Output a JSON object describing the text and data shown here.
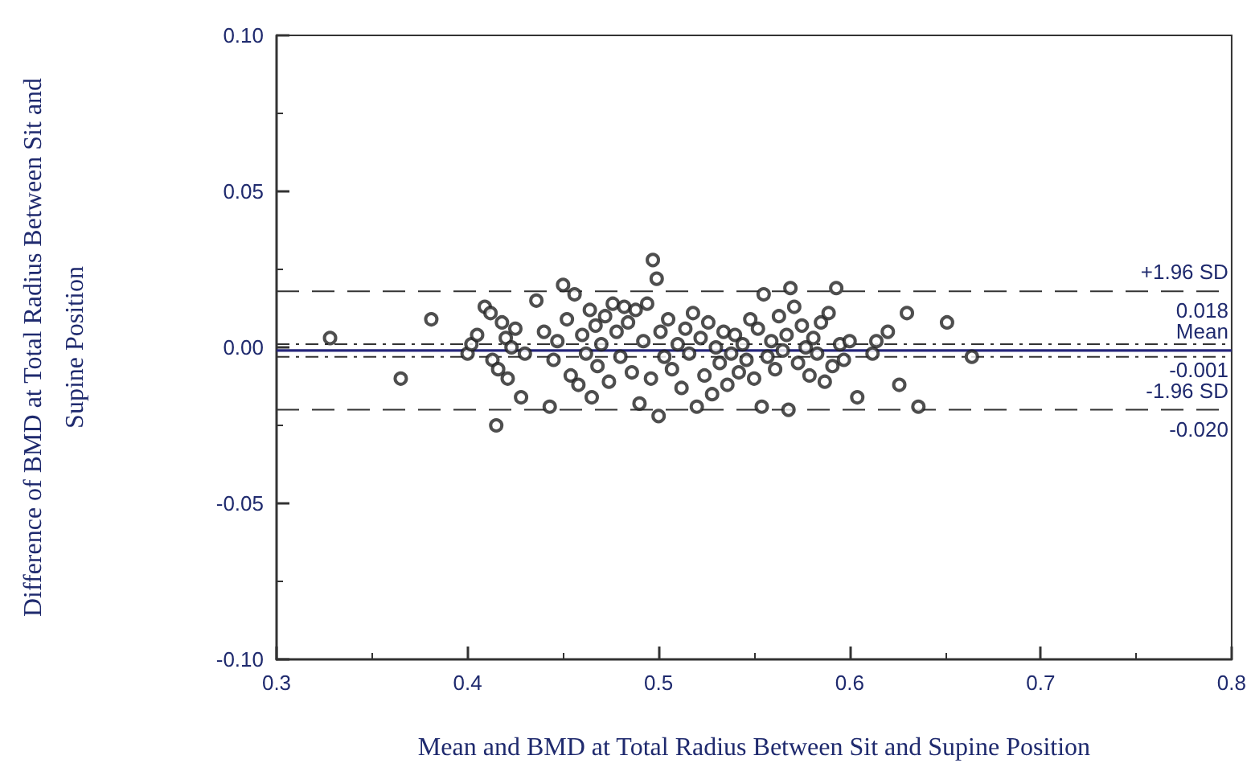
{
  "chart_data": {
    "type": "scatter",
    "xlabel": "Mean and BMD at Total Radius Between Sit and Supine Position",
    "ylabel": "Difference of BMD at Total Radius Between Sit and Supine Position",
    "xlim": [
      0.3,
      0.8
    ],
    "xticks": [
      0.3,
      0.4,
      0.5,
      0.6,
      0.7,
      0.8
    ],
    "ylim": [
      -0.1,
      0.1
    ],
    "yticks": [
      {
        "value": -0.1,
        "label": "-0.10"
      },
      {
        "value": -0.05,
        "label": "-0.05"
      },
      {
        "value": 0,
        "label": "0.00"
      },
      {
        "value": 0.05,
        "label": "0.05"
      },
      {
        "value": 0.1,
        "label": "0.10"
      }
    ],
    "grid": false,
    "marker": "circle",
    "ref_lines": [
      {
        "axis": "y",
        "value": 0.018,
        "label": "+1.96 SD\n0.018",
        "color": "#333333",
        "line_style": "dashed"
      },
      {
        "axis": "y",
        "value": -0.001,
        "label": "Mean\n-0.001",
        "color": "#25257a",
        "line_style": "solid"
      },
      {
        "axis": "y",
        "value": -0.02,
        "label": "-1.96 SD\n-0.020",
        "color": "#333333",
        "line_style": "dashed"
      },
      {
        "axis": "y",
        "value": 0.001,
        "color": "#333333",
        "line_style": "dotted"
      },
      {
        "axis": "y",
        "value": -0.003,
        "color": "#333333",
        "line_style": "dotted"
      }
    ],
    "series": [
      {
        "color": "#222222",
        "x": [
          0.328,
          0.365,
          0.381,
          0.4,
          0.402,
          0.405,
          0.409,
          0.412,
          0.413,
          0.415,
          0.416,
          0.418,
          0.42,
          0.421,
          0.423,
          0.425,
          0.428,
          0.43,
          0.436,
          0.44,
          0.443,
          0.445,
          0.447,
          0.45,
          0.452,
          0.454,
          0.456,
          0.458,
          0.46,
          0.462,
          0.464,
          0.465,
          0.467,
          0.468,
          0.47,
          0.472,
          0.474,
          0.476,
          0.478,
          0.48,
          0.482,
          0.484,
          0.486,
          0.488,
          0.49,
          0.492,
          0.494,
          0.496,
          0.497,
          0.499,
          0.5,
          0.501,
          0.503,
          0.505,
          0.507,
          0.51,
          0.512,
          0.514,
          0.516,
          0.518,
          0.52,
          0.522,
          0.524,
          0.526,
          0.528,
          0.53,
          0.532,
          0.534,
          0.536,
          0.538,
          0.54,
          0.542,
          0.544,
          0.546,
          0.548,
          0.55,
          0.552,
          0.554,
          0.555,
          0.557,
          0.559,
          0.561,
          0.563,
          0.565,
          0.567,
          0.568,
          0.569,
          0.571,
          0.573,
          0.575,
          0.577,
          0.579,
          0.581,
          0.583,
          0.585,
          0.587,
          0.589,
          0.591,
          0.593,
          0.595,
          0.597,
          0.6,
          0.604,
          0.612,
          0.614,
          0.62,
          0.626,
          0.63,
          0.636,
          0.651,
          0.664
        ],
        "values": [
          0.003,
          -0.01,
          0.009,
          -0.002,
          0.001,
          0.004,
          0.013,
          0.011,
          -0.004,
          -0.025,
          -0.007,
          0.008,
          0.003,
          -0.01,
          0.0,
          0.006,
          -0.016,
          -0.002,
          0.015,
          0.005,
          -0.019,
          -0.004,
          0.002,
          0.02,
          0.009,
          -0.009,
          0.017,
          -0.012,
          0.004,
          -0.002,
          0.012,
          -0.016,
          0.007,
          -0.006,
          0.001,
          0.01,
          -0.011,
          0.014,
          0.005,
          -0.003,
          0.013,
          0.008,
          -0.008,
          0.012,
          -0.018,
          0.002,
          0.014,
          -0.01,
          0.028,
          0.022,
          -0.022,
          0.005,
          -0.003,
          0.009,
          -0.007,
          0.001,
          -0.013,
          0.006,
          -0.002,
          0.011,
          -0.019,
          0.003,
          -0.009,
          0.008,
          -0.015,
          0.0,
          -0.005,
          0.005,
          -0.012,
          -0.002,
          0.004,
          -0.008,
          0.001,
          -0.004,
          0.009,
          -0.01,
          0.006,
          -0.019,
          0.017,
          -0.003,
          0.002,
          -0.007,
          0.01,
          -0.001,
          0.004,
          -0.02,
          0.019,
          0.013,
          -0.005,
          0.007,
          0.0,
          -0.009,
          0.003,
          -0.002,
          0.008,
          -0.011,
          0.011,
          -0.006,
          0.019,
          0.001,
          -0.004,
          0.002,
          -0.016,
          -0.002,
          0.002,
          0.005,
          -0.012,
          0.011,
          -0.019,
          0.008,
          -0.003
        ]
      }
    ]
  }
}
